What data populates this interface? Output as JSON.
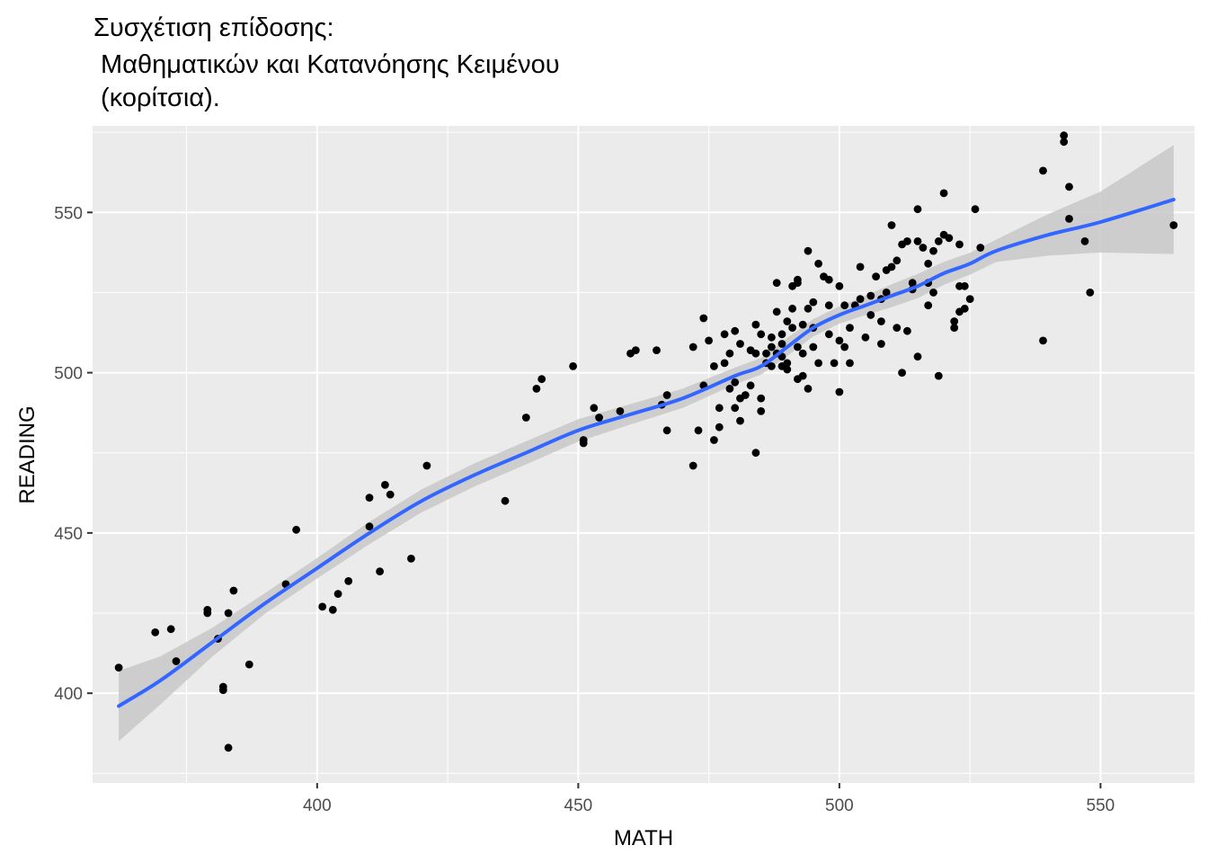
{
  "chart_data": {
    "type": "scatter",
    "title_lines": [
      "Συσχέτιση επίδοσης:",
      " Μαθηματικών και Κατανόησης Κειμένου",
      " (κορίτσια)."
    ],
    "xlabel": "MATH",
    "ylabel": "READING",
    "xlim": [
      357,
      568
    ],
    "ylim": [
      372,
      577
    ],
    "x_ticks": [
      400,
      450,
      500,
      550
    ],
    "y_ticks": [
      400,
      450,
      500,
      550
    ],
    "grid": true,
    "panel_background": "#ebebeb",
    "grid_color": "#ffffff",
    "point_color": "#000000",
    "smooth_color": "#3366ff",
    "ribbon_color": "#c8c8c8",
    "points": [
      [
        362,
        408
      ],
      [
        369,
        419
      ],
      [
        372,
        420
      ],
      [
        373,
        410
      ],
      [
        379,
        425
      ],
      [
        379,
        426
      ],
      [
        381,
        417
      ],
      [
        382,
        402
      ],
      [
        382,
        401
      ],
      [
        383,
        425
      ],
      [
        383,
        383
      ],
      [
        384,
        432
      ],
      [
        387,
        409
      ],
      [
        394,
        434
      ],
      [
        396,
        451
      ],
      [
        401,
        427
      ],
      [
        403,
        426
      ],
      [
        404,
        431
      ],
      [
        406,
        435
      ],
      [
        410,
        461
      ],
      [
        410,
        452
      ],
      [
        412,
        438
      ],
      [
        413,
        465
      ],
      [
        414,
        462
      ],
      [
        418,
        442
      ],
      [
        421,
        471
      ],
      [
        436,
        460
      ],
      [
        440,
        486
      ],
      [
        442,
        495
      ],
      [
        443,
        498
      ],
      [
        449,
        502
      ],
      [
        451,
        479
      ],
      [
        451,
        478
      ],
      [
        453,
        489
      ],
      [
        454,
        486
      ],
      [
        458,
        488
      ],
      [
        460,
        506
      ],
      [
        461,
        507
      ],
      [
        465,
        507
      ],
      [
        466,
        490
      ],
      [
        467,
        482
      ],
      [
        467,
        493
      ],
      [
        472,
        508
      ],
      [
        472,
        471
      ],
      [
        473,
        482
      ],
      [
        474,
        496
      ],
      [
        474,
        517
      ],
      [
        475,
        510
      ],
      [
        476,
        479
      ],
      [
        476,
        502
      ],
      [
        477,
        483
      ],
      [
        477,
        489
      ],
      [
        478,
        512
      ],
      [
        478,
        503
      ],
      [
        479,
        506
      ],
      [
        479,
        495
      ],
      [
        480,
        497
      ],
      [
        480,
        489
      ],
      [
        480,
        513
      ],
      [
        481,
        492
      ],
      [
        481,
        485
      ],
      [
        481,
        509
      ],
      [
        482,
        493
      ],
      [
        483,
        507
      ],
      [
        483,
        496
      ],
      [
        484,
        506
      ],
      [
        484,
        515
      ],
      [
        484,
        475
      ],
      [
        485,
        512
      ],
      [
        485,
        492
      ],
      [
        485,
        488
      ],
      [
        486,
        503
      ],
      [
        486,
        506
      ],
      [
        487,
        508
      ],
      [
        487,
        502
      ],
      [
        487,
        511
      ],
      [
        488,
        506
      ],
      [
        488,
        528
      ],
      [
        488,
        519
      ],
      [
        489,
        509
      ],
      [
        489,
        512
      ],
      [
        489,
        502
      ],
      [
        489,
        505
      ],
      [
        490,
        516
      ],
      [
        490,
        503
      ],
      [
        490,
        501
      ],
      [
        491,
        514
      ],
      [
        491,
        527
      ],
      [
        491,
        520
      ],
      [
        492,
        528
      ],
      [
        492,
        508
      ],
      [
        492,
        529
      ],
      [
        492,
        498
      ],
      [
        493,
        515
      ],
      [
        493,
        506
      ],
      [
        493,
        499
      ],
      [
        494,
        495
      ],
      [
        494,
        520
      ],
      [
        494,
        538
      ],
      [
        495,
        508
      ],
      [
        495,
        514
      ],
      [
        495,
        522
      ],
      [
        496,
        534
      ],
      [
        496,
        503
      ],
      [
        497,
        530
      ],
      [
        498,
        512
      ],
      [
        498,
        521
      ],
      [
        498,
        529
      ],
      [
        499,
        503
      ],
      [
        500,
        510
      ],
      [
        500,
        527
      ],
      [
        500,
        494
      ],
      [
        501,
        508
      ],
      [
        501,
        521
      ],
      [
        502,
        514
      ],
      [
        502,
        503
      ],
      [
        503,
        521
      ],
      [
        504,
        523
      ],
      [
        504,
        533
      ],
      [
        505,
        511
      ],
      [
        506,
        518
      ],
      [
        506,
        524
      ],
      [
        507,
        530
      ],
      [
        508,
        509
      ],
      [
        508,
        516
      ],
      [
        508,
        523
      ],
      [
        509,
        532
      ],
      [
        509,
        525
      ],
      [
        510,
        533
      ],
      [
        510,
        546
      ],
      [
        511,
        514
      ],
      [
        511,
        535
      ],
      [
        512,
        540
      ],
      [
        512,
        500
      ],
      [
        513,
        541
      ],
      [
        513,
        513
      ],
      [
        514,
        528
      ],
      [
        514,
        526
      ],
      [
        515,
        541
      ],
      [
        515,
        505
      ],
      [
        515,
        551
      ],
      [
        516,
        539
      ],
      [
        517,
        528
      ],
      [
        517,
        521
      ],
      [
        517,
        534
      ],
      [
        518,
        525
      ],
      [
        518,
        538
      ],
      [
        519,
        541
      ],
      [
        519,
        499
      ],
      [
        520,
        543
      ],
      [
        520,
        556
      ],
      [
        521,
        542
      ],
      [
        522,
        514
      ],
      [
        522,
        516
      ],
      [
        523,
        519
      ],
      [
        523,
        540
      ],
      [
        523,
        527
      ],
      [
        524,
        520
      ],
      [
        524,
        527
      ],
      [
        525,
        523
      ],
      [
        526,
        551
      ],
      [
        527,
        539
      ],
      [
        539,
        563
      ],
      [
        539,
        510
      ],
      [
        543,
        572
      ],
      [
        543,
        574
      ],
      [
        544,
        558
      ],
      [
        544,
        548
      ],
      [
        547,
        541
      ],
      [
        548,
        525
      ],
      [
        564,
        546
      ]
    ],
    "smooth_x": [
      362,
      370,
      380,
      390,
      400,
      410,
      420,
      430,
      440,
      450,
      460,
      470,
      480,
      485,
      490,
      495,
      500,
      505,
      510,
      515,
      520,
      525,
      530,
      540,
      550,
      564
    ],
    "smooth_y": [
      396,
      404,
      416,
      428,
      439,
      450,
      460,
      468,
      475,
      482,
      487,
      492,
      499,
      502,
      508,
      514,
      518,
      521,
      524,
      527,
      531,
      534,
      538,
      543,
      547,
      554
    ],
    "ribbon_hw": [
      11,
      7.5,
      4.5,
      3.2,
      3.2,
      3.5,
      3.6,
      3.6,
      3.6,
      3.5,
      3.2,
      3.0,
      2.6,
      2.6,
      2.8,
      2.7,
      2.7,
      3.0,
      3.6,
      3.8,
      3.6,
      3.4,
      3.5,
      6.5,
      9.5,
      17
    ]
  }
}
